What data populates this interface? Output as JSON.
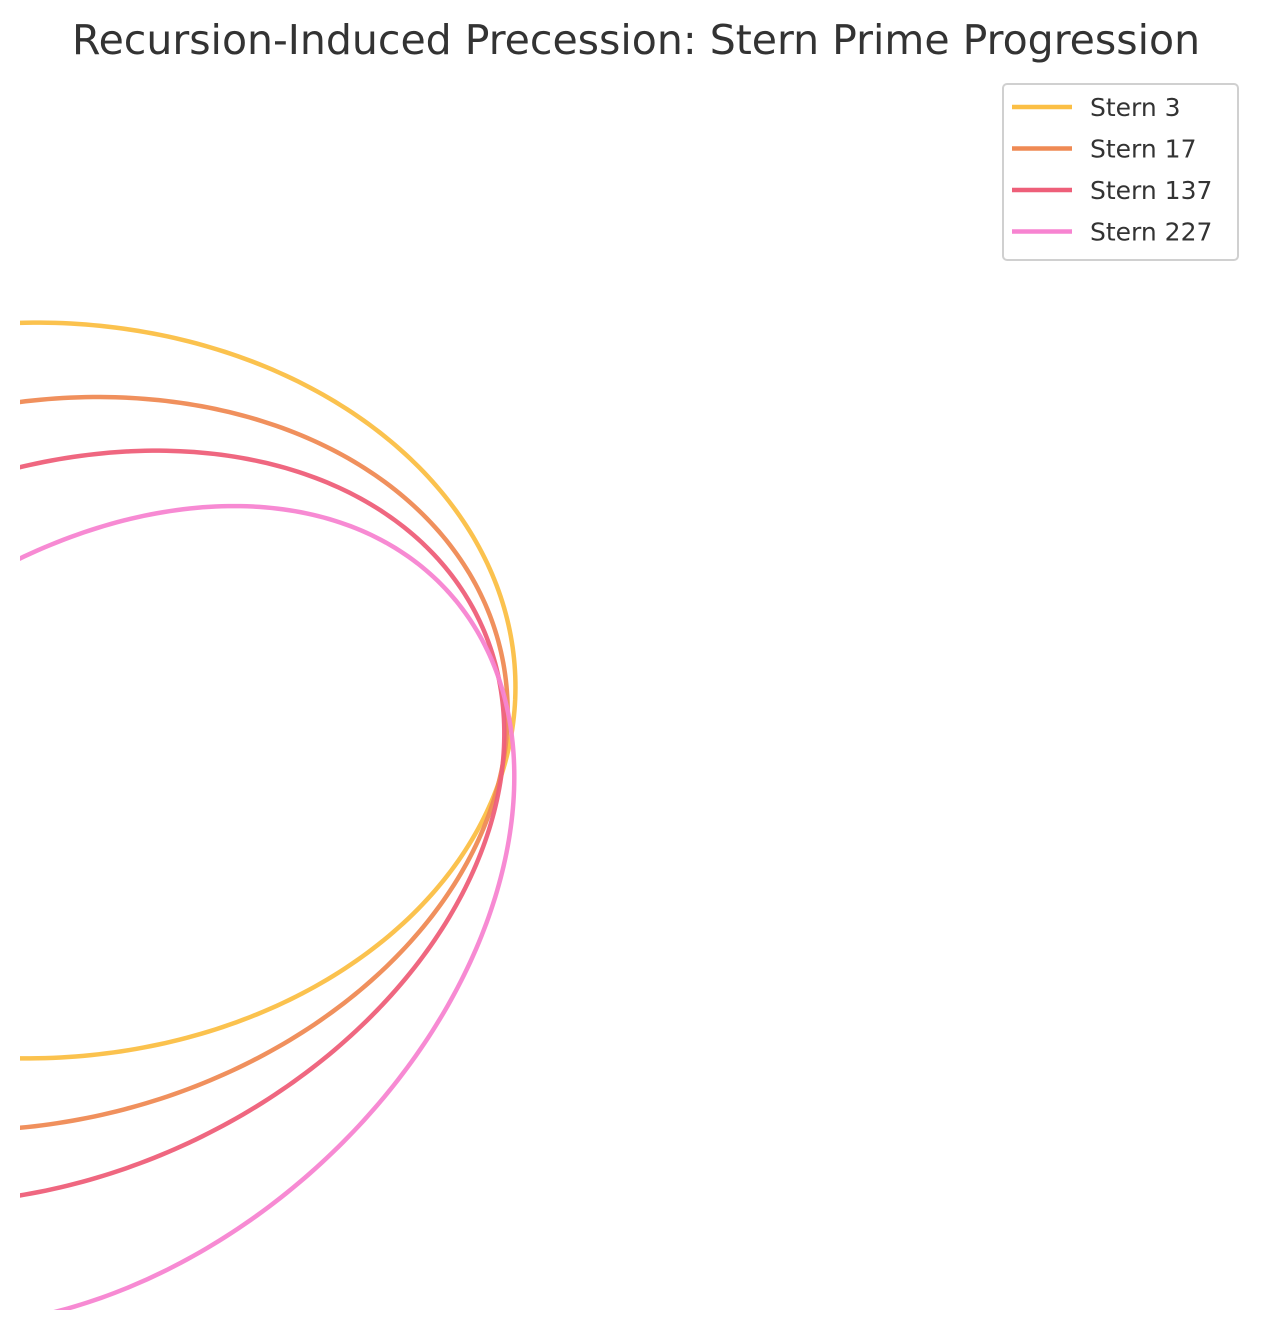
{
  "chart_data": {
    "type": "line",
    "title": "Recursion-Induced Precession: Stern Prime Progression",
    "xlabel": "",
    "ylabel": "",
    "grid": false,
    "axes_visible": false,
    "legend_position": "top-right",
    "series": [
      {
        "name": "Stern 3",
        "color": "#fbbf45",
        "orbit": {
          "semi_major": 1.0,
          "semi_minor": 0.76,
          "precession_deg": 1.0
        }
      },
      {
        "name": "Stern 17",
        "color": "#ef8a54",
        "orbit": {
          "semi_major": 1.0,
          "semi_minor": 0.74,
          "precession_deg": 14.0
        }
      },
      {
        "name": "Stern 137",
        "color": "#ee5f79",
        "orbit": {
          "semi_major": 1.0,
          "semi_minor": 0.72,
          "precession_deg": 25.0
        }
      },
      {
        "name": "Stern 227",
        "color": "#f784d1",
        "orbit": {
          "semi_major": 1.0,
          "semi_minor": 0.7,
          "precession_deg": 42.0
        }
      }
    ]
  }
}
